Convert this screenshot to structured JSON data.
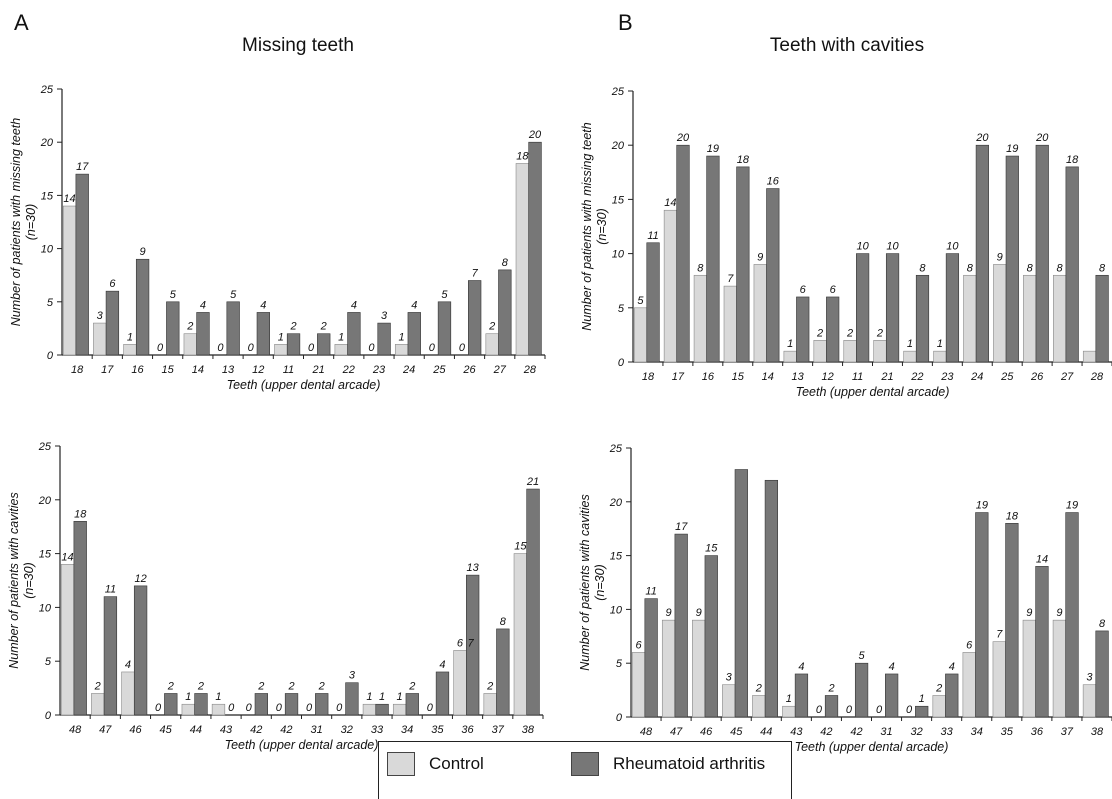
{
  "panels": {
    "a": {
      "letter": "A",
      "title": "Missing teeth"
    },
    "b": {
      "letter": "B",
      "title": "Teeth with cavities"
    }
  },
  "colors": {
    "control": "#d9d9d9",
    "rheumatoid": "#777777"
  },
  "legend": {
    "control": "Control",
    "rheumatoid": "Rheumatoid arthritis"
  },
  "chart_data": [
    {
      "type": "bar",
      "panel": "A",
      "categories": [
        "18",
        "17",
        "16",
        "15",
        "14",
        "13",
        "12",
        "11",
        "21",
        "22",
        "23",
        "24",
        "25",
        "26",
        "27",
        "28"
      ],
      "series": [
        {
          "name": "Control",
          "values": [
            14,
            3,
            1,
            0,
            2,
            0,
            0,
            1,
            0,
            1,
            0,
            1,
            0,
            0,
            2,
            18
          ]
        },
        {
          "name": "Rheumatoid arthritis",
          "values": [
            17,
            6,
            9,
            5,
            4,
            5,
            4,
            2,
            2,
            4,
            3,
            4,
            5,
            7,
            8,
            20
          ]
        }
      ],
      "xlabel": "Teeth (upper dental arcade)",
      "ylabel": "Number of patients with missing teeth\n(n=30)",
      "ylim": [
        0,
        25
      ],
      "yticks": [
        0,
        5,
        10,
        15,
        20,
        25
      ],
      "grid": false
    },
    {
      "type": "bar",
      "panel": "B",
      "categories": [
        "18",
        "17",
        "16",
        "15",
        "14",
        "13",
        "12",
        "11",
        "21",
        "22",
        "23",
        "24",
        "25",
        "26",
        "27",
        "28"
      ],
      "series": [
        {
          "name": "Control",
          "values": [
            5,
            14,
            8,
            7,
            9,
            1,
            2,
            2,
            2,
            1,
            1,
            8,
            9,
            8,
            8,
            1
          ]
        },
        {
          "name": "Rheumatoid arthritis",
          "values": [
            11,
            20,
            19,
            18,
            16,
            6,
            6,
            10,
            10,
            8,
            10,
            20,
            19,
            20,
            18,
            8
          ]
        }
      ],
      "labels": [
        [
          "5",
          "14",
          "8",
          "7",
          "9",
          "1",
          "2",
          "2",
          "2",
          "1",
          "1",
          "8",
          "9",
          "8",
          "8",
          ""
        ],
        [
          "11",
          "20",
          "19",
          "18",
          "16",
          "6",
          "6",
          "10",
          "10",
          "8",
          "10",
          "20",
          "19",
          "20",
          "18",
          "8"
        ]
      ],
      "xlabel": "Teeth (upper dental arcade)",
      "ylabel": "Number of patients with missing teeth\n(n=30)",
      "ylim": [
        0,
        25
      ],
      "yticks": [
        0,
        5,
        10,
        15,
        20,
        25
      ],
      "grid": false
    },
    {
      "type": "bar",
      "panel": "A",
      "categories": [
        "48",
        "47",
        "46",
        "45",
        "44",
        "43",
        "42",
        "42",
        "31",
        "32",
        "33",
        "34",
        "35",
        "36",
        "37",
        "38"
      ],
      "series": [
        {
          "name": "Control",
          "values": [
            14,
            2,
            4,
            0,
            1,
            1,
            0,
            0,
            0,
            0,
            1,
            1,
            0,
            6,
            2,
            15
          ]
        },
        {
          "name": "Rheumatoid arthritis",
          "values": [
            18,
            11,
            12,
            2,
            2,
            0,
            2,
            2,
            2,
            3,
            1,
            2,
            4,
            13,
            8,
            21
          ]
        }
      ],
      "labels": [
        [
          "14",
          "2",
          "4",
          "0",
          "1",
          "1",
          "0",
          "0",
          "0",
          "0",
          "1",
          "1",
          "0",
          "6",
          "2",
          "15"
        ],
        [
          "18",
          "11",
          "12",
          "2",
          "2",
          "0",
          "2",
          "2",
          "2",
          "3",
          "1",
          "2",
          "4",
          "13",
          "8",
          "21"
        ]
      ],
      "extra_label": {
        "index": 13,
        "text": "7"
      },
      "xlabel": "Teeth (upper dental arcade)",
      "ylabel": "Number of patients with cavities\n(n=30)",
      "ylim": [
        0,
        25
      ],
      "yticks": [
        0,
        5,
        10,
        15,
        20,
        25
      ],
      "grid": false
    },
    {
      "type": "bar",
      "panel": "B",
      "categories": [
        "48",
        "47",
        "46",
        "45",
        "44",
        "43",
        "42",
        "42",
        "31",
        "32",
        "33",
        "34",
        "35",
        "36",
        "37",
        "38"
      ],
      "series": [
        {
          "name": "Control",
          "values": [
            6,
            9,
            9,
            3,
            2,
            1,
            0,
            0,
            0,
            0,
            2,
            6,
            7,
            9,
            9,
            3
          ]
        },
        {
          "name": "Rheumatoid arthritis",
          "values": [
            11,
            17,
            15,
            23,
            22,
            4,
            2,
            5,
            4,
            1,
            4,
            19,
            18,
            14,
            19,
            8
          ]
        }
      ],
      "labels": [
        [
          "6",
          "9",
          "9",
          "3",
          "2",
          "1",
          "0",
          "0",
          "0",
          "0",
          "2",
          "6",
          "7",
          "9",
          "9",
          "3"
        ],
        [
          "11",
          "17",
          "15",
          "",
          "",
          "4",
          "2",
          "5",
          "4",
          "1",
          "4",
          "19",
          "18",
          "14",
          "19",
          "8"
        ]
      ],
      "xlabel": "Teeth (upper dental arcade)",
      "ylabel": "Number of patients with cavities\n(n=30)",
      "ylim": [
        0,
        25
      ],
      "yticks": [
        0,
        5,
        10,
        15,
        20,
        25
      ],
      "grid": false
    }
  ]
}
